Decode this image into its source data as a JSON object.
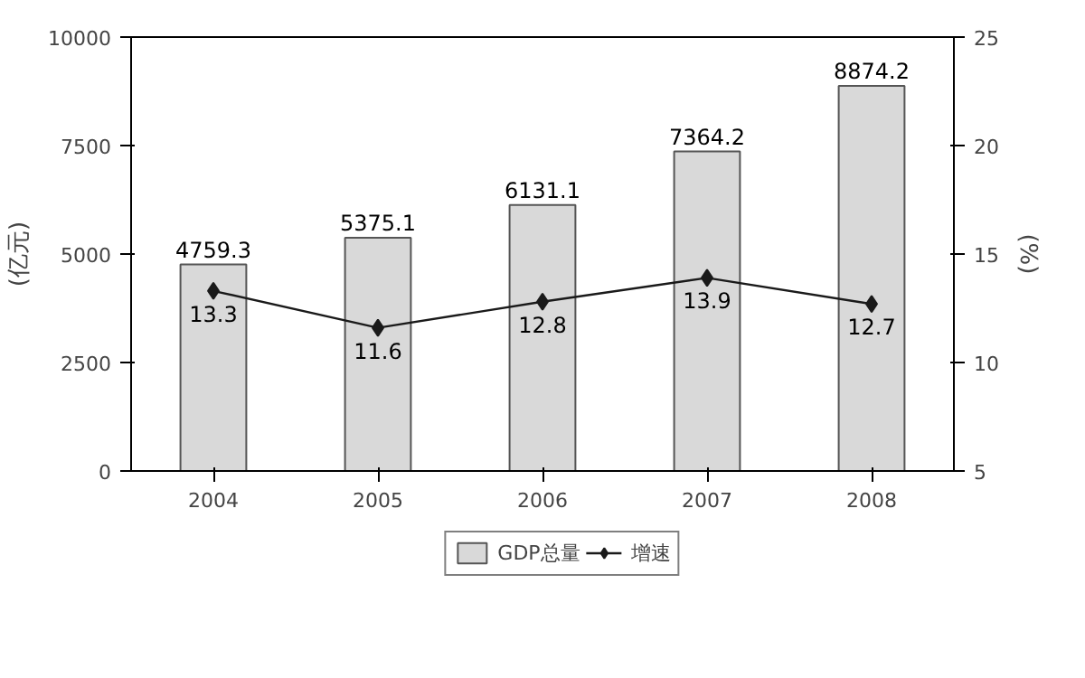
{
  "chart_data": {
    "type": "bar",
    "categories": [
      "2004",
      "2005",
      "2006",
      "2007",
      "2008"
    ],
    "ylabel": "(亿元)",
    "y2label": "(%)",
    "series": [
      {
        "name": "GDP总量",
        "color": "#d9d9d9",
        "values": [
          4759.3,
          5375.1,
          6131.1,
          7364.2,
          8874.2
        ]
      },
      {
        "name": "增速",
        "type": "line",
        "axis": "y2",
        "color": "#1a1a1a",
        "values": [
          13.3,
          11.6,
          12.8,
          13.9,
          12.7
        ]
      }
    ],
    "ylim": [
      0,
      10000
    ],
    "yticks": [
      0,
      2500,
      5000,
      7500,
      10000
    ],
    "y2lim": [
      5,
      25
    ],
    "y2ticks": [
      5,
      10,
      15,
      20,
      25
    ],
    "marker": "diamond",
    "data_labels": true,
    "legend": "bottom",
    "grid": false
  }
}
